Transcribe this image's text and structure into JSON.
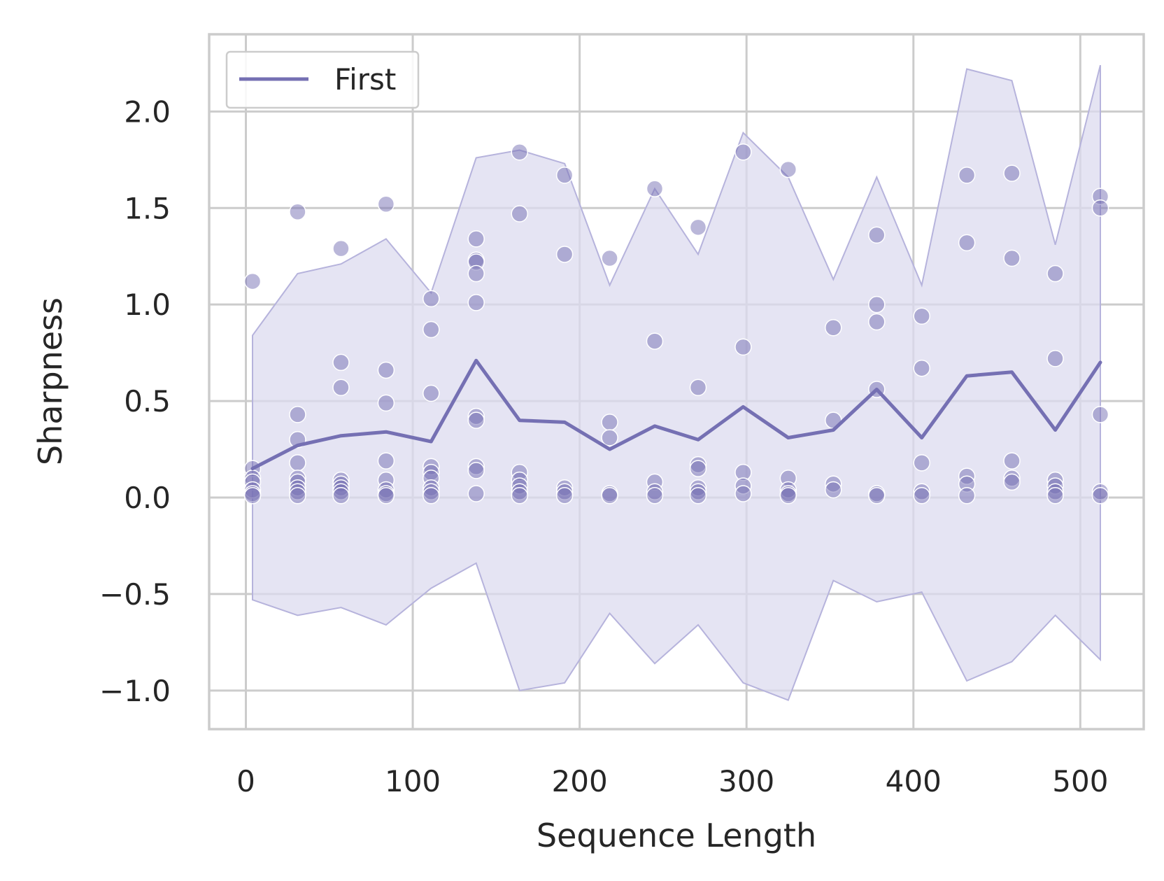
{
  "chart_data": {
    "type": "line",
    "title": "",
    "xlabel": "Sequence Length",
    "ylabel": "Sharpness",
    "xlim": [
      -22,
      538
    ],
    "ylim": [
      -1.2,
      2.4
    ],
    "xticks": [
      0,
      100,
      200,
      300,
      400,
      500
    ],
    "yticks": [
      -1.0,
      -0.5,
      0.0,
      0.5,
      1.0,
      1.5,
      2.0
    ],
    "xtick_labels": [
      "0",
      "100",
      "200",
      "300",
      "400",
      "500"
    ],
    "ytick_labels": [
      "−1.0",
      "−0.5",
      "0.0",
      "0.5",
      "1.0",
      "1.5",
      "2.0"
    ],
    "grid": true,
    "legend": {
      "position": "top-left",
      "entries": [
        "First"
      ]
    },
    "colors": {
      "series": "#7570b3",
      "band": "#dcdbef",
      "grid": "#cccccc",
      "spine": "#cccccc"
    },
    "series": [
      {
        "name": "First",
        "x": [
          4,
          31,
          57,
          84,
          111,
          138,
          164,
          191,
          218,
          245,
          271,
          298,
          325,
          352,
          378,
          405,
          432,
          459,
          485,
          512
        ],
        "y": [
          0.15,
          0.27,
          0.32,
          0.34,
          0.29,
          0.71,
          0.4,
          0.39,
          0.25,
          0.37,
          0.3,
          0.47,
          0.31,
          0.35,
          0.56,
          0.31,
          0.63,
          0.65,
          0.35,
          0.7
        ],
        "band_upper": [
          0.84,
          1.16,
          1.21,
          1.34,
          1.06,
          1.76,
          1.8,
          1.73,
          1.1,
          1.6,
          1.26,
          1.89,
          1.66,
          1.13,
          1.66,
          1.1,
          2.22,
          2.16,
          1.31,
          2.24
        ],
        "band_lower": [
          -0.53,
          -0.61,
          -0.57,
          -0.66,
          -0.47,
          -0.34,
          -1.0,
          -0.96,
          -0.6,
          -0.86,
          -0.66,
          -0.96,
          -1.05,
          -0.43,
          -0.54,
          -0.49,
          -0.95,
          -0.85,
          -0.61,
          -0.84
        ]
      }
    ],
    "points": [
      {
        "x": 4,
        "y": [
          1.12,
          0.15,
          0.1,
          0.08,
          0.04,
          0.02,
          0.01
        ]
      },
      {
        "x": 31,
        "y": [
          1.48,
          0.43,
          0.3,
          0.18,
          0.1,
          0.08,
          0.05,
          0.03,
          0.01
        ]
      },
      {
        "x": 57,
        "y": [
          1.29,
          0.7,
          0.57,
          0.09,
          0.07,
          0.05,
          0.03,
          0.01
        ]
      },
      {
        "x": 84,
        "y": [
          1.52,
          0.66,
          0.49,
          0.19,
          0.09,
          0.04,
          0.02,
          0.01
        ]
      },
      {
        "x": 111,
        "y": [
          1.03,
          0.87,
          0.54,
          0.16,
          0.13,
          0.1,
          0.05,
          0.03,
          0.01
        ]
      },
      {
        "x": 138,
        "y": [
          1.34,
          1.23,
          1.22,
          1.16,
          1.01,
          0.42,
          0.4,
          0.16,
          0.14,
          0.02
        ]
      },
      {
        "x": 164,
        "y": [
          1.79,
          1.47,
          0.13,
          0.09,
          0.06,
          0.03,
          0.01
        ]
      },
      {
        "x": 191,
        "y": [
          1.67,
          1.26,
          0.05,
          0.03,
          0.01
        ]
      },
      {
        "x": 218,
        "y": [
          1.24,
          0.39,
          0.31,
          0.02,
          0.01
        ]
      },
      {
        "x": 245,
        "y": [
          1.6,
          0.81,
          0.08,
          0.03,
          0.01
        ]
      },
      {
        "x": 271,
        "y": [
          1.4,
          0.57,
          0.17,
          0.15,
          0.05,
          0.03,
          0.01
        ]
      },
      {
        "x": 298,
        "y": [
          1.79,
          0.78,
          0.13,
          0.06,
          0.02
        ]
      },
      {
        "x": 325,
        "y": [
          1.7,
          0.1,
          0.04,
          0.02,
          0.01
        ]
      },
      {
        "x": 352,
        "y": [
          0.88,
          0.4,
          0.07,
          0.04
        ]
      },
      {
        "x": 378,
        "y": [
          1.36,
          1.0,
          0.91,
          0.56,
          0.02,
          0.01
        ]
      },
      {
        "x": 405,
        "y": [
          0.94,
          0.67,
          0.18,
          0.03,
          0.01
        ]
      },
      {
        "x": 432,
        "y": [
          1.67,
          1.32,
          0.11,
          0.07,
          0.01
        ]
      },
      {
        "x": 459,
        "y": [
          1.68,
          1.24,
          0.19,
          0.1,
          0.08
        ]
      },
      {
        "x": 485,
        "y": [
          1.16,
          0.72,
          0.09,
          0.06,
          0.03,
          0.01
        ]
      },
      {
        "x": 512,
        "y": [
          1.56,
          1.5,
          0.43,
          0.03,
          0.01
        ]
      }
    ]
  }
}
